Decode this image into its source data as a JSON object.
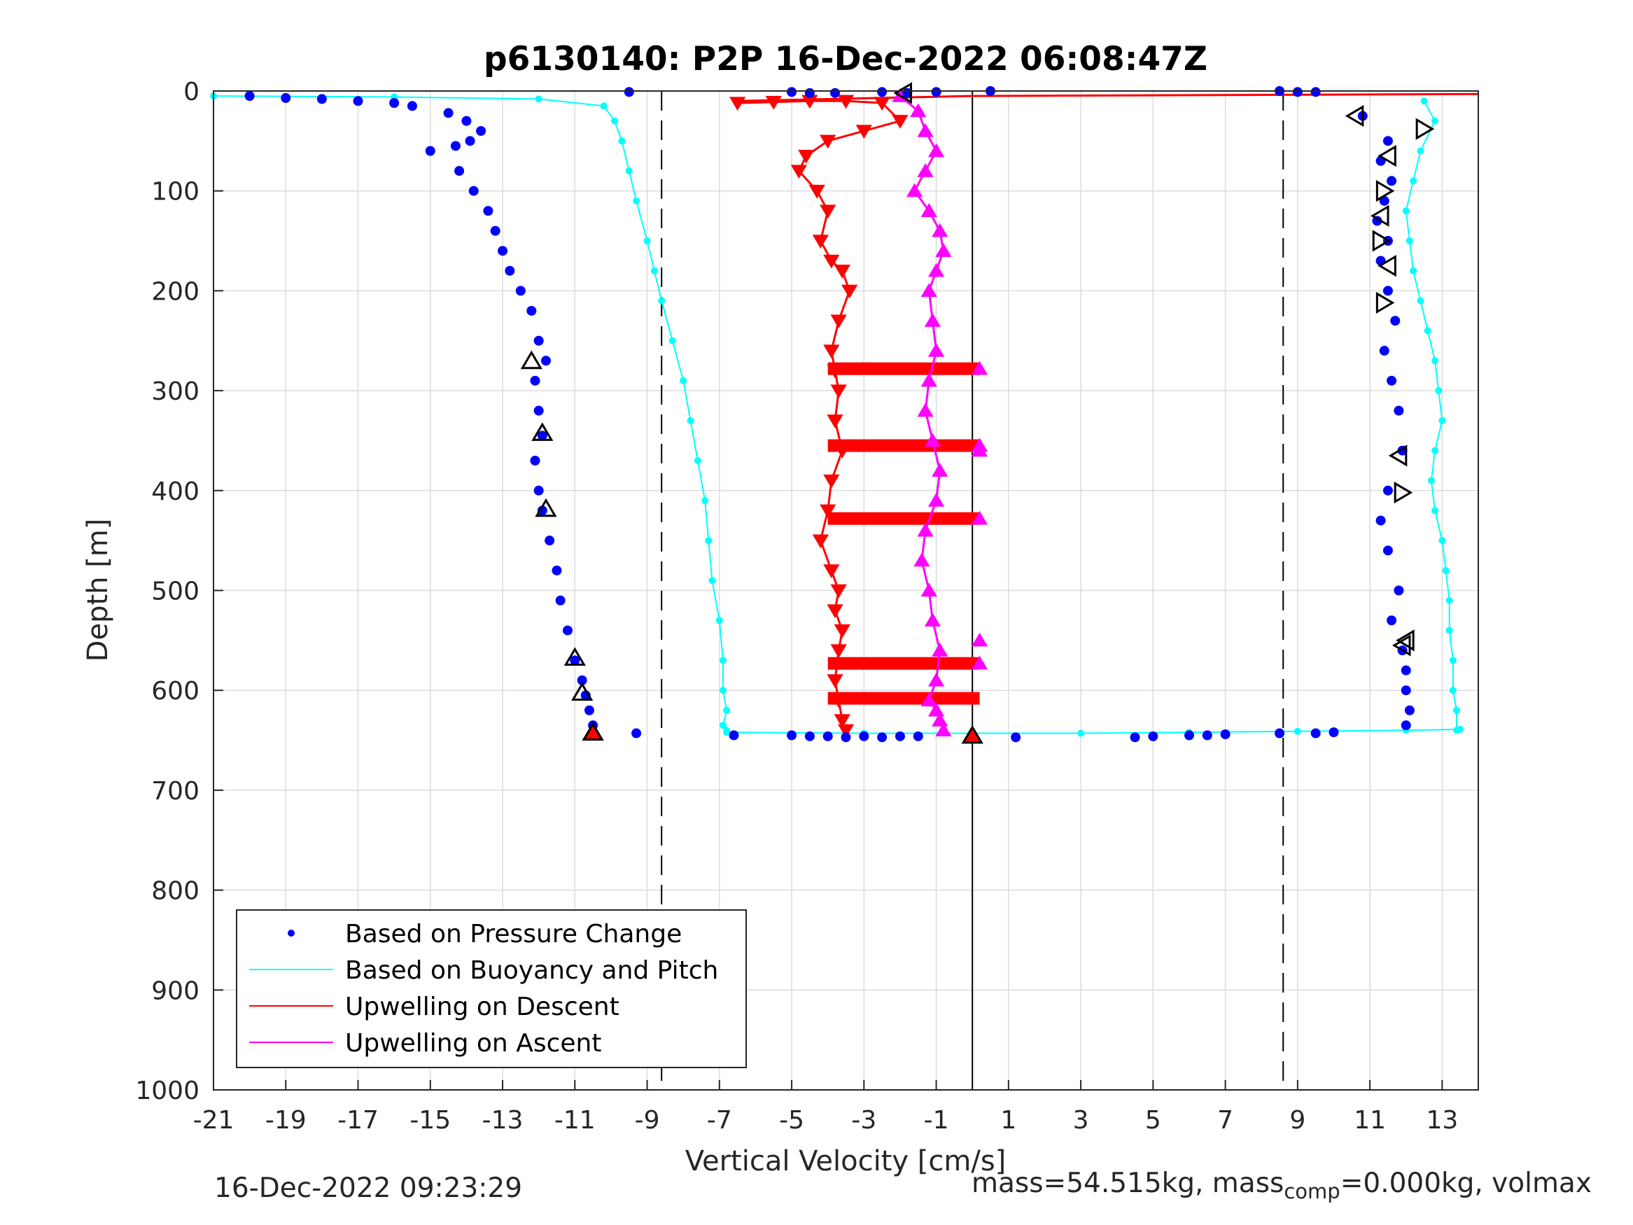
{
  "chart_data": {
    "type": "scatter",
    "title": "p6130140: P2P 16-Dec-2022 06:08:47Z",
    "xlabel": "Vertical Velocity [cm/s]",
    "ylabel": "Depth [m]",
    "xlim": [
      -21,
      14
    ],
    "ylim": [
      0,
      1000
    ],
    "y_reversed": true,
    "grid": true,
    "xticks": [
      -21,
      -19,
      -17,
      -15,
      -13,
      -11,
      -9,
      -7,
      -5,
      -3,
      -1,
      1,
      3,
      5,
      7,
      9,
      11,
      13
    ],
    "yticks": [
      0,
      100,
      200,
      300,
      400,
      500,
      600,
      700,
      800,
      900,
      1000
    ],
    "reference_lines": {
      "dashed_x": [
        -8.6,
        8.6
      ],
      "solid_x": [
        0
      ]
    },
    "legend": {
      "placement": "bottom-left",
      "entries": [
        {
          "label": "Based on Pressure Change",
          "color": "#0000ff",
          "marker": "dot"
        },
        {
          "label": "Based on Buoyancy and Pitch",
          "color": "#00ffff",
          "marker": "line"
        },
        {
          "label": "Upwelling on Descent",
          "color": "#ff0000",
          "marker": "line"
        },
        {
          "label": "Upwelling on Ascent",
          "color": "#ff00ff",
          "marker": "line"
        }
      ]
    },
    "series": [
      {
        "key": "pressure_descent",
        "color": "#0000ff",
        "x": [
          -20,
          -19,
          -18,
          -17,
          -16,
          -15.5,
          -14.5,
          -14.0,
          -13.6,
          -13.9,
          -14.3,
          -15.0,
          -14.2,
          -13.8,
          -13.4,
          -13.2,
          -13.0,
          -12.8,
          -12.5,
          -12.2,
          -12.0,
          -11.8,
          -12.1,
          -12.0,
          -11.9,
          -12.1,
          -12.0,
          -11.9,
          -11.7,
          -11.5,
          -11.4,
          -11.2,
          -11.0,
          -10.8,
          -10.7,
          -10.6,
          -10.5,
          -10.5
        ],
        "y": [
          5,
          7,
          8,
          10,
          12,
          15,
          22,
          30,
          40,
          50,
          55,
          60,
          80,
          100,
          120,
          140,
          160,
          180,
          200,
          220,
          250,
          270,
          290,
          320,
          345,
          370,
          400,
          420,
          450,
          480,
          510,
          540,
          570,
          590,
          605,
          620,
          635,
          642
        ]
      },
      {
        "key": "pressure_ascent",
        "color": "#0000ff",
        "x": [
          10.8,
          11.5,
          11.3,
          11.6,
          11.4,
          11.2,
          11.5,
          11.3,
          11.5,
          11.7,
          11.4,
          11.6,
          11.8,
          11.9,
          11.5,
          11.3,
          11.5,
          11.8,
          11.6,
          11.9,
          12.0,
          12.0,
          12.1,
          12.0
        ],
        "y": [
          25,
          50,
          70,
          90,
          110,
          130,
          150,
          170,
          200,
          230,
          260,
          290,
          320,
          360,
          400,
          430,
          460,
          500,
          530,
          560,
          580,
          600,
          620,
          635
        ]
      },
      {
        "key": "pressure_bottom",
        "color": "#0000ff",
        "x": [
          -9.3,
          -6.6,
          -5.0,
          -4.5,
          -4.0,
          -3.5,
          -3.0,
          -2.5,
          -2.0,
          -1.5,
          1.2,
          4.5,
          5.0,
          6.0,
          6.5,
          7.0,
          8.5,
          9.5,
          10.0
        ],
        "y": [
          643,
          645,
          645,
          646,
          646,
          647,
          646,
          647,
          646,
          646,
          647,
          647,
          646,
          645,
          645,
          644,
          643,
          643,
          642
        ]
      },
      {
        "key": "pressure_surface",
        "color": "#0000ff",
        "x": [
          -9.5,
          -5.0,
          -4.5,
          -3.8,
          -2.5,
          -1.8,
          -1.0,
          0.5,
          8.5,
          9.0,
          9.5
        ],
        "y": [
          1,
          1,
          2,
          2,
          1,
          2,
          1,
          0,
          0,
          1,
          1
        ]
      },
      {
        "key": "buoyancy_descent",
        "color": "#00ffff",
        "x": [
          -21,
          -16,
          -12,
          -10.2,
          -9.9,
          -9.7,
          -9.5,
          -9.3,
          -9.0,
          -8.8,
          -8.6,
          -8.3,
          -8.0,
          -7.8,
          -7.6,
          -7.4,
          -7.3,
          -7.2,
          -7.0,
          -6.9,
          -6.9,
          -6.8,
          -6.9,
          -6.8
        ],
        "y": [
          5,
          6,
          8,
          15,
          30,
          50,
          80,
          110,
          150,
          180,
          210,
          250,
          290,
          330,
          370,
          410,
          450,
          490,
          530,
          570,
          600,
          620,
          635,
          640
        ]
      },
      {
        "key": "buoyancy_ascent",
        "color": "#00ffff",
        "x": [
          12.5,
          12.8,
          12.4,
          12.2,
          12.0,
          12.1,
          12.2,
          12.4,
          12.6,
          12.8,
          12.9,
          13.0,
          12.8,
          12.7,
          12.8,
          13.0,
          13.1,
          13.2,
          13.2,
          13.3,
          13.3,
          13.4,
          13.4
        ],
        "y": [
          10,
          30,
          60,
          90,
          120,
          150,
          180,
          210,
          240,
          270,
          300,
          330,
          360,
          390,
          420,
          450,
          480,
          510,
          540,
          570,
          600,
          620,
          640
        ]
      },
      {
        "key": "buoyancy_bottom",
        "color": "#00ffff",
        "x": [
          -6.8,
          -3.0,
          0.0,
          3.0,
          6.0,
          9.0,
          12.0,
          13.5
        ],
        "y": [
          642,
          643,
          643,
          643,
          642,
          641,
          640,
          639
        ]
      },
      {
        "key": "upwelling_descent",
        "color": "#ff0000",
        "x": [
          -6.5,
          -5.5,
          -4.5,
          -3.5,
          -2.5,
          -2.0,
          -3.0,
          -4.0,
          -4.6,
          -4.8,
          -4.3,
          -4.0,
          -4.2,
          -3.9,
          -3.6,
          -3.4,
          -3.7,
          -3.9,
          -3.8,
          -3.7,
          -3.8,
          -3.6,
          -3.9,
          -4.0,
          -4.2,
          -3.9,
          -3.7,
          -3.8,
          -3.6,
          -3.7,
          -3.8,
          -3.7,
          -3.6,
          -3.5
        ],
        "y": [
          12,
          11,
          10,
          10,
          12,
          30,
          40,
          50,
          65,
          80,
          100,
          120,
          150,
          170,
          180,
          200,
          230,
          260,
          280,
          300,
          330,
          360,
          390,
          420,
          450,
          480,
          500,
          520,
          540,
          560,
          590,
          610,
          630,
          640
        ]
      },
      {
        "key": "upwelling_descent_surface",
        "color": "#ff0000",
        "x": [
          -6.5,
          0,
          14
        ],
        "y": [
          10,
          5,
          3
        ]
      },
      {
        "key": "upwelling_ascent",
        "color": "#ff00ff",
        "x": [
          -2.0,
          -1.5,
          -1.3,
          -1.0,
          -1.3,
          -1.6,
          -1.2,
          -0.9,
          -0.8,
          -1.0,
          -1.2,
          -1.1,
          -1.0,
          -1.2,
          -1.3,
          -1.1,
          -0.9,
          -1.0,
          -1.3,
          -1.4,
          -1.2,
          -1.1,
          -0.9,
          -1.0,
          -1.2,
          -1.0,
          -0.9,
          -0.8
        ],
        "y": [
          5,
          20,
          40,
          60,
          80,
          100,
          120,
          140,
          160,
          180,
          200,
          230,
          260,
          290,
          320,
          350,
          380,
          410,
          440,
          470,
          500,
          530,
          560,
          590,
          610,
          620,
          630,
          640
        ]
      },
      {
        "key": "horizontal_spikes",
        "color": "#ff0000",
        "x": [
          -4.0,
          0.2
        ],
        "levels": [
          278,
          355,
          428,
          573,
          608
        ]
      },
      {
        "key": "spike_markers",
        "color": "#ff00ff",
        "x": [
          0.2,
          0.2,
          0.2,
          0.2,
          0.2,
          0.2
        ],
        "y": [
          278,
          355,
          360,
          428,
          550,
          573
        ]
      },
      {
        "key": "black_triangles",
        "color": "#000000",
        "x": [
          -1.9,
          -12.2,
          -11.9,
          -11.8,
          -11.0,
          -10.8,
          -10.5,
          10.6,
          12.5,
          11.5,
          11.4,
          11.3,
          11.3,
          11.5,
          11.4,
          11.8,
          11.9,
          12.0,
          11.9
        ],
        "y": [
          2,
          270,
          342,
          418,
          567,
          602,
          642,
          25,
          38,
          65,
          100,
          125,
          150,
          175,
          212,
          365,
          402,
          550,
          555
        ],
        "orientation": [
          "left",
          "up",
          "up",
          "up",
          "up",
          "up",
          "up",
          "left",
          "right",
          "left",
          "right",
          "left",
          "right",
          "left",
          "right",
          "left",
          "right",
          "left",
          "left"
        ]
      },
      {
        "key": "bottom_markers",
        "color": "#ff0000",
        "x": [
          -10.5,
          0.0
        ],
        "y": [
          642,
          645
        ]
      }
    ]
  },
  "footer": {
    "timestamp": "16-Dec-2022 09:23:29",
    "mass_text_pre": "mass=54.515kg, mass",
    "mass_sub": "comp",
    "mass_text_post": "=0.000kg, volmax"
  }
}
